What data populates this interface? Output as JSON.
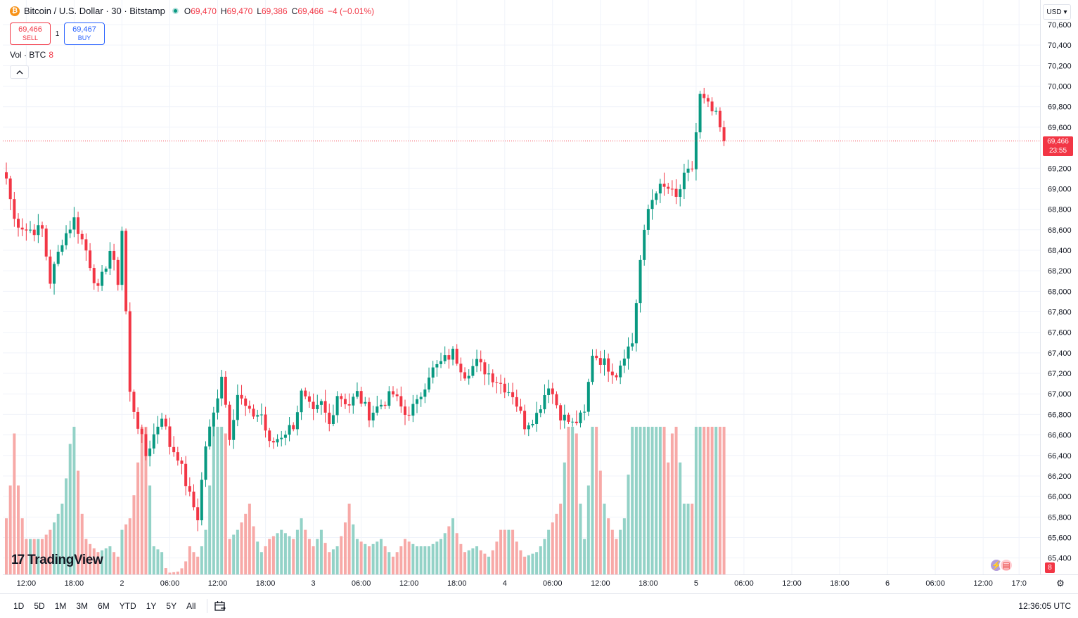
{
  "symbol": {
    "coin_glyph": "₿",
    "title": "Bitcoin / U.S. Dollar · 30 · Bitstamp",
    "open_label": "O",
    "open": "69,470",
    "high_label": "H",
    "high": "69,470",
    "low_label": "L",
    "low": "69,386",
    "close_label": "C",
    "close": "69,466",
    "change": "−4 (−0.01%)"
  },
  "trade": {
    "sell_price": "69,466",
    "sell_label": "SELL",
    "spread": "1",
    "buy_price": "69,467",
    "buy_label": "BUY"
  },
  "volume_legend": {
    "label": "Vol · BTC",
    "value": "8"
  },
  "currency": {
    "label": "USD",
    "chevron": "▾"
  },
  "last_price_tag": {
    "price": "69,466",
    "countdown": "23:55"
  },
  "branding": {
    "logo_mark": "17",
    "logo_text": "TradingView"
  },
  "volume_badge": "8",
  "range_buttons": [
    "1D",
    "5D",
    "1M",
    "3M",
    "6M",
    "YTD",
    "1Y",
    "5Y",
    "All"
  ],
  "clock": "12:36:05 UTC",
  "icons": {
    "collapse": "chevron-up-icon",
    "calendar": "calendar-icon",
    "settings": "gear-icon",
    "events": [
      "bolt-event-icon",
      "us-flag-event-icon"
    ]
  },
  "colors": {
    "up": "#089981",
    "down": "#f23645",
    "up_volume": "#93d2c7",
    "down_volume": "#f7a9a7",
    "grid": "#f0f3fa"
  },
  "chart_data": {
    "type": "candlestick",
    "interval": "30m",
    "y_axis_ticks": [
      70600,
      70400,
      70200,
      70000,
      69800,
      69600,
      69200,
      69000,
      68800,
      68600,
      68400,
      68200,
      68000,
      67800,
      67600,
      67400,
      67200,
      67000,
      66800,
      66600,
      66400,
      66200,
      66000,
      65800,
      65600,
      65400
    ],
    "y_axis_labels": [
      "70,600",
      "70,400",
      "70,200",
      "70,000",
      "69,800",
      "69,600",
      "69,200",
      "69,000",
      "68,800",
      "68,600",
      "68,400",
      "68,200",
      "68,000",
      "67,800",
      "67,600",
      "67,400",
      "67,200",
      "67,000",
      "66,800",
      "66,600",
      "66,400",
      "66,200",
      "66,000",
      "65,800",
      "65,600",
      "65,400"
    ],
    "ylim": [
      65250,
      70650
    ],
    "x_axis_labels": [
      {
        "label": "12:00",
        "bar": 5
      },
      {
        "label": "18:00",
        "bar": 17
      },
      {
        "label": "2",
        "bar": 29
      },
      {
        "label": "06:00",
        "bar": 41
      },
      {
        "label": "12:00",
        "bar": 53
      },
      {
        "label": "18:00",
        "bar": 65
      },
      {
        "label": "3",
        "bar": 77
      },
      {
        "label": "06:00",
        "bar": 89
      },
      {
        "label": "12:00",
        "bar": 101
      },
      {
        "label": "18:00",
        "bar": 113
      },
      {
        "label": "4",
        "bar": 125
      },
      {
        "label": "06:00",
        "bar": 137
      },
      {
        "label": "12:00",
        "bar": 149
      },
      {
        "label": "18:00",
        "bar": 161
      },
      {
        "label": "5",
        "bar": 173
      },
      {
        "label": "06:00",
        "bar": 185
      },
      {
        "label": "12:00",
        "bar": 197
      },
      {
        "label": "18:00",
        "bar": 209
      },
      {
        "label": "6",
        "bar": 221
      },
      {
        "label": "06:00",
        "bar": 233
      },
      {
        "label": "12:00",
        "bar": 245
      },
      {
        "label": "17:0",
        "bar": 254
      }
    ],
    "last_price": 69466,
    "anchors": [
      [
        0,
        69100,
        68.5
      ],
      [
        2,
        68700,
        68.9
      ],
      [
        5,
        68600,
        68.3
      ],
      [
        9,
        68600,
        68.3
      ],
      [
        11,
        68100,
        68.4
      ],
      [
        14,
        68500,
        68.6
      ],
      [
        17,
        68700,
        69.0
      ],
      [
        20,
        68400,
        68.3
      ],
      [
        23,
        68000,
        68.1
      ],
      [
        26,
        68400,
        68.2
      ],
      [
        28,
        68100,
        68.0
      ],
      [
        29,
        68600,
        68.4
      ],
      [
        31,
        67000,
        68.5
      ],
      [
        33,
        66700,
        68.8
      ],
      [
        35,
        66400,
        69.2
      ],
      [
        37,
        66600,
        68.2
      ],
      [
        39,
        66800,
        68.1
      ],
      [
        41,
        66500,
        67.0
      ],
      [
        43,
        66400,
        67.2
      ],
      [
        46,
        66000,
        68.2
      ],
      [
        48,
        65800,
        68.0
      ],
      [
        50,
        66500,
        68.4
      ],
      [
        52,
        66800,
        69.0
      ],
      [
        54,
        67200,
        69.5
      ],
      [
        56,
        66600,
        68.3
      ],
      [
        58,
        67000,
        68.4
      ],
      [
        61,
        66800,
        68.6
      ],
      [
        64,
        66800,
        68.1
      ],
      [
        66,
        66500,
        68.3
      ],
      [
        69,
        66600,
        68.4
      ],
      [
        72,
        66700,
        68.3
      ],
      [
        74,
        67000,
        68.5
      ],
      [
        77,
        66800,
        68.2
      ],
      [
        79,
        66900,
        68.4
      ],
      [
        81,
        66700,
        68.1
      ],
      [
        83,
        67000,
        68.2
      ],
      [
        86,
        66900,
        68.6
      ],
      [
        88,
        67000,
        68.3
      ],
      [
        91,
        66800,
        68.2
      ],
      [
        94,
        66900,
        68.3
      ],
      [
        97,
        67000,
        68.0
      ],
      [
        100,
        66800,
        68.3
      ],
      [
        103,
        66900,
        68.2
      ],
      [
        106,
        67200,
        68.2
      ],
      [
        109,
        67300,
        68.3
      ],
      [
        112,
        67400,
        68.5
      ],
      [
        115,
        67200,
        68.1
      ],
      [
        118,
        67300,
        68.2
      ],
      [
        121,
        67200,
        68.0
      ],
      [
        124,
        67100,
        68.4
      ],
      [
        127,
        67000,
        68.4
      ],
      [
        130,
        66700,
        68.0
      ],
      [
        133,
        66800,
        68.1
      ],
      [
        136,
        67100,
        68.4
      ],
      [
        139,
        66800,
        68.6
      ],
      [
        142,
        66700,
        69.2
      ],
      [
        145,
        66800,
        68.3
      ],
      [
        147,
        67400,
        69.1
      ],
      [
        150,
        67300,
        68.6
      ],
      [
        153,
        67200,
        68.3
      ],
      [
        155,
        67400,
        68.5
      ],
      [
        157,
        67500,
        69.0
      ],
      [
        159,
        68300,
        69.0
      ],
      [
        161,
        68800,
        69.2
      ],
      [
        163,
        69000,
        69.6
      ],
      [
        166,
        69000,
        68.8
      ],
      [
        168,
        68900,
        69.0
      ],
      [
        170,
        69100,
        68.6
      ],
      [
        172,
        69200,
        68.6
      ],
      [
        174,
        69900,
        70.2
      ],
      [
        176,
        69800,
        69.7
      ],
      [
        178,
        69700,
        69.6
      ],
      [
        180,
        69466,
        69.4
      ]
    ],
    "note": "anchors: [bar_index, close_price, volume_in_btc]; bar_index 0 = first visible 30-minute bar"
  }
}
